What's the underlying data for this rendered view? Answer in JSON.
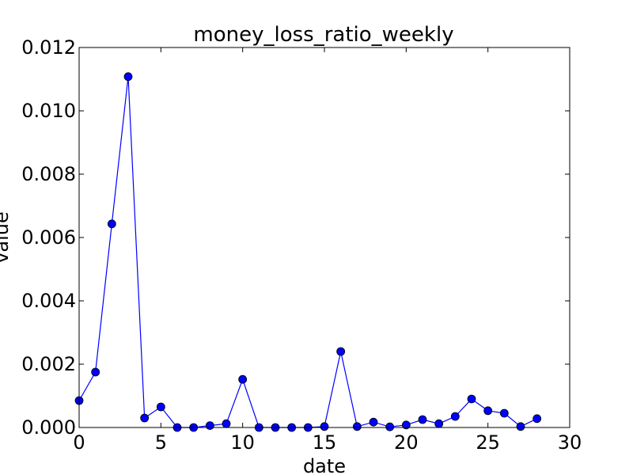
{
  "chart_data": {
    "type": "line",
    "title": "money_loss_ratio_weekly",
    "xlabel": "date",
    "ylabel": "value",
    "xlim": [
      0,
      30
    ],
    "ylim": [
      0,
      0.012
    ],
    "grid": false,
    "x_ticks": [
      "0",
      "5",
      "10",
      "15",
      "20",
      "25",
      "30"
    ],
    "y_ticks": [
      "0.000",
      "0.002",
      "0.004",
      "0.006",
      "0.008",
      "0.010",
      "0.012"
    ],
    "series": [
      {
        "color": "#0000ff",
        "marker": "circle",
        "x": [
          0,
          1,
          2,
          3,
          4,
          5,
          6,
          7,
          8,
          9,
          10,
          11,
          12,
          13,
          14,
          15,
          16,
          17,
          18,
          19,
          20,
          21,
          22,
          23,
          24,
          25,
          26,
          27,
          28
        ],
        "values": [
          0.00085,
          0.00175,
          0.00643,
          0.01108,
          0.0003,
          0.00065,
          0.0,
          0.0,
          6e-05,
          0.00012,
          0.00152,
          0.0,
          0.0,
          0.0,
          0.0,
          3e-05,
          0.0024,
          3e-05,
          0.00017,
          2e-05,
          8e-05,
          0.00025,
          0.00012,
          0.00035,
          0.0009,
          0.00053,
          0.00045,
          3e-05,
          0.00028
        ]
      }
    ]
  }
}
